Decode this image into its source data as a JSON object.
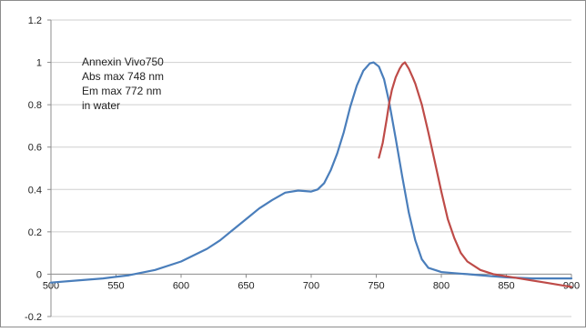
{
  "colors": {
    "absorbance": "#4a7ebb",
    "emission": "#be4b48",
    "grid": "#cfcfcf",
    "axis": "#8c8c8c",
    "frame": "#8c8c8c"
  },
  "annotation": {
    "lines": [
      "Annexin Vivo750",
      "Abs max 748 nm",
      "Em max 772 nm",
      "in water"
    ]
  },
  "chart_data": {
    "type": "line",
    "title": "",
    "xlabel": "",
    "ylabel": "",
    "xlim": [
      500,
      900
    ],
    "ylim": [
      -0.2,
      1.2
    ],
    "x_ticks": [
      500,
      550,
      600,
      650,
      700,
      750,
      800,
      850,
      900
    ],
    "y_ticks": [
      -0.2,
      0,
      0.2,
      0.4,
      0.6,
      0.8,
      1,
      1.2
    ],
    "x_tick_labels": [
      "500",
      "550",
      "600",
      "650",
      "700",
      "750",
      "800",
      "850",
      "900"
    ],
    "y_tick_labels": [
      "-0.2",
      "0",
      "0.2",
      "0.4",
      "0.6",
      "0.8",
      "1",
      "1.2"
    ],
    "grid": "horizontal",
    "legend": "none",
    "series": [
      {
        "color": "#4a7ebb",
        "x": [
          500,
          520,
          540,
          560,
          580,
          600,
          610,
          620,
          630,
          640,
          650,
          660,
          670,
          680,
          690,
          700,
          705,
          710,
          715,
          720,
          725,
          730,
          735,
          740,
          745,
          748,
          752,
          756,
          760,
          765,
          770,
          775,
          780,
          785,
          790,
          800,
          810,
          820,
          830,
          840,
          850,
          870,
          900
        ],
        "y": [
          -0.04,
          -0.03,
          -0.02,
          -0.005,
          0.02,
          0.06,
          0.09,
          0.12,
          0.16,
          0.21,
          0.26,
          0.31,
          0.35,
          0.385,
          0.395,
          0.39,
          0.4,
          0.43,
          0.49,
          0.57,
          0.67,
          0.79,
          0.89,
          0.96,
          0.995,
          1.0,
          0.98,
          0.92,
          0.81,
          0.64,
          0.46,
          0.29,
          0.16,
          0.07,
          0.03,
          0.01,
          0.005,
          0.0,
          -0.005,
          -0.01,
          -0.015,
          -0.02,
          -0.02
        ]
      },
      {
        "color": "#be4b48",
        "x": [
          752,
          755,
          758,
          760,
          762,
          765,
          768,
          770,
          772,
          775,
          778,
          780,
          785,
          790,
          795,
          800,
          805,
          810,
          815,
          820,
          830,
          840,
          850,
          860,
          870,
          880,
          890,
          900
        ],
        "y": [
          0.55,
          0.62,
          0.73,
          0.81,
          0.87,
          0.93,
          0.97,
          0.99,
          1.0,
          0.97,
          0.93,
          0.9,
          0.8,
          0.67,
          0.53,
          0.39,
          0.26,
          0.17,
          0.1,
          0.06,
          0.02,
          0.0,
          -0.01,
          -0.02,
          -0.03,
          -0.04,
          -0.05,
          -0.06
        ]
      }
    ]
  }
}
